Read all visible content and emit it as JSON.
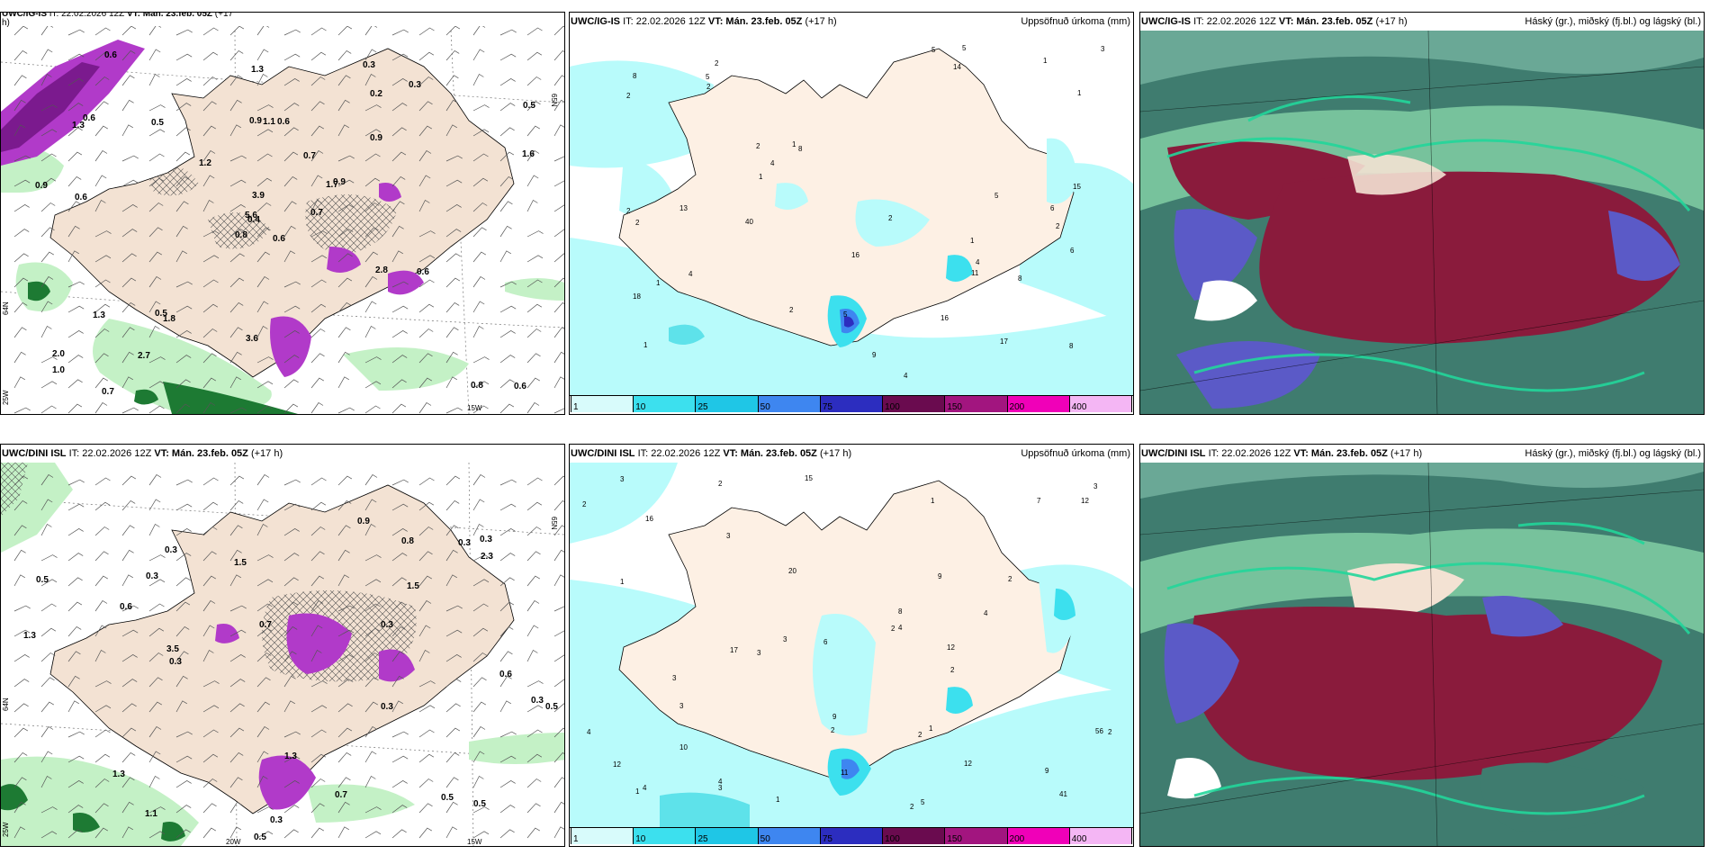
{
  "panels": {
    "top_left": {
      "model": "UWC/IG-IS",
      "it": "IT: 22.02.2026 12Z",
      "vt_label": "VT:",
      "vt": "Mán. 23.feb. 05Z",
      "lead": "(+17",
      "lead2": "h)",
      "lat_label_1": "65N",
      "lat_label_2": "64N",
      "lon_label_1": "25W",
      "lon_label_2": "15W",
      "values": [
        "0.6",
        "1.3",
        "0.4",
        "2.0",
        "1.7",
        "1.8",
        "0.3",
        "0.6",
        "0.2",
        "0.7",
        "0.6",
        "0.6",
        "0.6",
        "0.5",
        "0.8",
        "0.9",
        "0.7",
        "0.9",
        "0.7",
        "1.3",
        "1.2",
        "1.0",
        "2.7",
        "1.1",
        "0.9",
        "0.6",
        "0.6",
        "1.3",
        "0.9",
        "2.8",
        "1.6",
        "5.6",
        "3.6",
        "3.9",
        "0.5",
        "0.3",
        "0.5",
        "0.8"
      ]
    },
    "top_mid": {
      "model": "UWC/IG-IS",
      "it": "IT: 22.02.2026 12Z",
      "vt_label": "VT:",
      "vt": "Mán. 23.feb. 05Z",
      "lead": "(+17 h)",
      "title": "Uppsöfnuð úrkoma (mm)",
      "values": [
        "1",
        "2",
        "1",
        "2",
        "8",
        "17",
        "18",
        "14",
        "2",
        "4",
        "2",
        "2",
        "8",
        "8",
        "2",
        "15",
        "16",
        "2",
        "1",
        "4",
        "3",
        "1",
        "1",
        "6",
        "5",
        "5",
        "4",
        "2",
        "2",
        "5",
        "9",
        "16",
        "4",
        "40",
        "6",
        "8",
        "11",
        "13",
        "5",
        "1",
        "1",
        "5"
      ]
    },
    "top_right": {
      "model": "UWC/IG-IS",
      "it": "IT: 22.02.2026 12Z",
      "vt_label": "VT:",
      "vt": "Mán. 23.feb. 05Z",
      "lead": "(+17 h)",
      "title": "Háský (gr.), miðský (fj.bl.) og lágský (bl.)"
    },
    "bot_left": {
      "model": "UWC/DINI ISL",
      "it": "IT: 22.02.2026 12Z",
      "vt_label": "VT:",
      "vt": "Mán. 23.feb. 05Z",
      "lead": "(+17 h)",
      "lat_label_1": "65N",
      "lat_label_2": "64N",
      "lon_label_1": "25W",
      "lon_label_2": "20W",
      "lon_label_3": "15W",
      "values": [
        "0.5",
        "0.3",
        "0.3",
        "0.3",
        "0.3",
        "0.5",
        "0.3",
        "0.3",
        "0.3",
        "0.5",
        "0.3",
        "0.3",
        "1.5",
        "1.3",
        "1.3",
        "1.1",
        "3.5",
        "1.5",
        "0.5",
        "0.7",
        "0.5",
        "0.6",
        "0.7",
        "1.3",
        "0.8",
        "0.6",
        "2.3",
        "0.9"
      ]
    },
    "bot_mid": {
      "model": "UWC/DINI ISL",
      "it": "IT: 22.02.2026 12Z",
      "vt_label": "VT:",
      "vt": "Mán. 23.feb. 05Z",
      "lead": "(+17 h)",
      "title": "Uppsöfnuð úrkoma (mm)",
      "values": [
        "1",
        "2",
        "4",
        "12",
        "2",
        "16",
        "17",
        "41",
        "15",
        "20",
        "7",
        "11",
        "3",
        "2",
        "1",
        "2",
        "1",
        "3",
        "3",
        "2",
        "2",
        "3",
        "8",
        "1",
        "2",
        "3",
        "4",
        "3",
        "3",
        "2",
        "6",
        "5",
        "9",
        "12",
        "10",
        "12",
        "56",
        "12",
        "9",
        "9",
        "4",
        "4",
        "2",
        "4",
        "3",
        "1"
      ]
    },
    "bot_right": {
      "model": "UWC/DINI ISL",
      "it": "IT: 22.02.2026 12Z",
      "vt_label": "VT:",
      "vt": "Mán. 23.feb. 05Z",
      "lead": "(+17 h)",
      "title": "Háský (gr.), miðský (fj.bl.) og lágský (bl.)"
    }
  },
  "colorbar": {
    "labels": [
      "1",
      "10",
      "25",
      "50",
      "75",
      "100",
      "150",
      "200",
      "400"
    ],
    "colors": [
      "#d8fbfb",
      "#3ce0ee",
      "#1fc6e6",
      "#3e86f0",
      "#2c2dbf",
      "#6a0b4f",
      "#a2157f",
      "#f000b8",
      "#f4b6f4"
    ]
  },
  "colors": {
    "land": "#f3e2d3",
    "land_precip": "#fdf0e4",
    "sea_precip": "#b8fbfb",
    "precip_med": "#5ee2ea",
    "violet": "#b13ac9",
    "green_light": "#c4f1c6",
    "green_dark": "#1d7a33",
    "cloud_high": "#86d3a7",
    "cloud_mid": "#5b5ac7",
    "cloud_low": "#8a1b3c",
    "cloud_bg": "#3f7c6f"
  }
}
